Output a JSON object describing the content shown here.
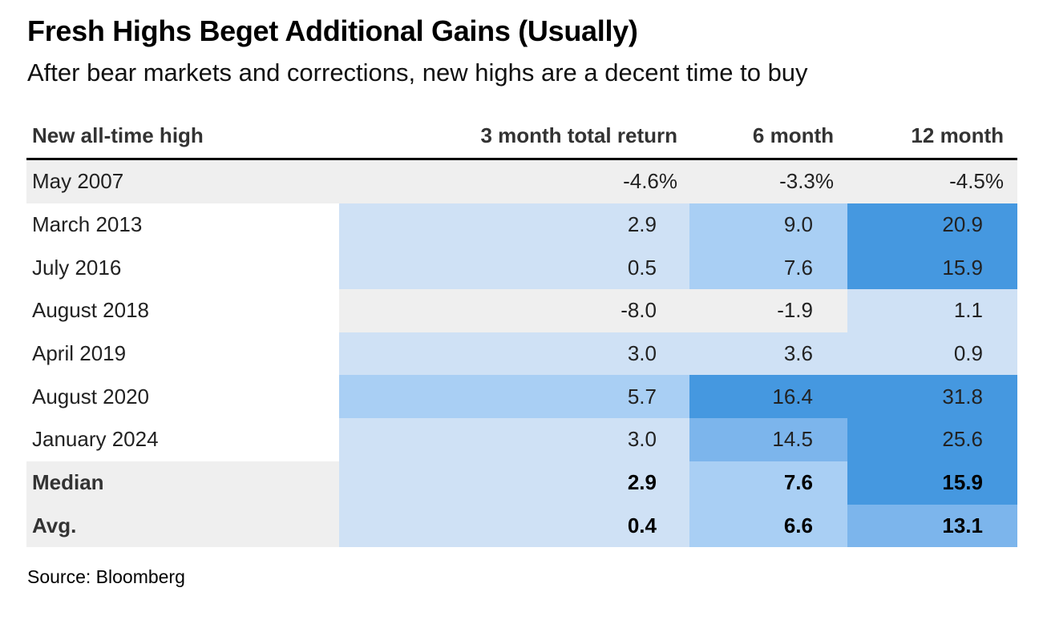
{
  "title": "Fresh Highs Beget Additional Gains (Usually)",
  "subtitle": "After bear markets and corrections, new highs are a decent time to buy",
  "source": "Source: Bloomberg",
  "colors": {
    "neutral": "#efefef",
    "light": "#cfe1f5",
    "medium_light": "#a9cff4",
    "medium": "#7cb5ec",
    "strong": "#4598e0"
  },
  "chart_data": {
    "type": "table",
    "columns": [
      "New all-time high",
      "3 month total return",
      "6 month",
      "12 month"
    ],
    "rows": [
      {
        "label": "May 2007",
        "cells": [
          {
            "text": "-4.6%",
            "value": -4.6,
            "shade": "neutral"
          },
          {
            "text": "-3.3%",
            "value": -3.3,
            "shade": "neutral"
          },
          {
            "text": "-4.5%",
            "value": -4.5,
            "shade": "neutral"
          }
        ]
      },
      {
        "label": "March 2013",
        "cells": [
          {
            "text": "2.9",
            "value": 2.9,
            "shade": "light"
          },
          {
            "text": "9.0",
            "value": 9.0,
            "shade": "medium_light"
          },
          {
            "text": "20.9",
            "value": 20.9,
            "shade": "strong"
          }
        ]
      },
      {
        "label": "July 2016",
        "cells": [
          {
            "text": "0.5",
            "value": 0.5,
            "shade": "light"
          },
          {
            "text": "7.6",
            "value": 7.6,
            "shade": "medium_light"
          },
          {
            "text": "15.9",
            "value": 15.9,
            "shade": "strong"
          }
        ]
      },
      {
        "label": "August 2018",
        "cells": [
          {
            "text": "-8.0",
            "value": -8.0,
            "shade": "neutral"
          },
          {
            "text": "-1.9",
            "value": -1.9,
            "shade": "neutral"
          },
          {
            "text": "1.1",
            "value": 1.1,
            "shade": "light"
          }
        ]
      },
      {
        "label": "April 2019",
        "cells": [
          {
            "text": "3.0",
            "value": 3.0,
            "shade": "light"
          },
          {
            "text": "3.6",
            "value": 3.6,
            "shade": "light"
          },
          {
            "text": "0.9",
            "value": 0.9,
            "shade": "light"
          }
        ]
      },
      {
        "label": "August 2020",
        "cells": [
          {
            "text": "5.7",
            "value": 5.7,
            "shade": "medium_light"
          },
          {
            "text": "16.4",
            "value": 16.4,
            "shade": "strong"
          },
          {
            "text": "31.8",
            "value": 31.8,
            "shade": "strong"
          }
        ]
      },
      {
        "label": "January 2024",
        "cells": [
          {
            "text": "3.0",
            "value": 3.0,
            "shade": "light"
          },
          {
            "text": "14.5",
            "value": 14.5,
            "shade": "medium"
          },
          {
            "text": "25.6",
            "value": 25.6,
            "shade": "strong"
          }
        ]
      },
      {
        "label": "Median",
        "bold": true,
        "cells": [
          {
            "text": "2.9",
            "value": 2.9,
            "shade": "light"
          },
          {
            "text": "7.6",
            "value": 7.6,
            "shade": "medium_light"
          },
          {
            "text": "15.9",
            "value": 15.9,
            "shade": "strong"
          }
        ]
      },
      {
        "label": "Avg.",
        "bold": true,
        "cells": [
          {
            "text": "0.4",
            "value": 0.4,
            "shade": "light"
          },
          {
            "text": "6.6",
            "value": 6.6,
            "shade": "medium_light"
          },
          {
            "text": "13.1",
            "value": 13.1,
            "shade": "medium"
          }
        ]
      }
    ]
  }
}
